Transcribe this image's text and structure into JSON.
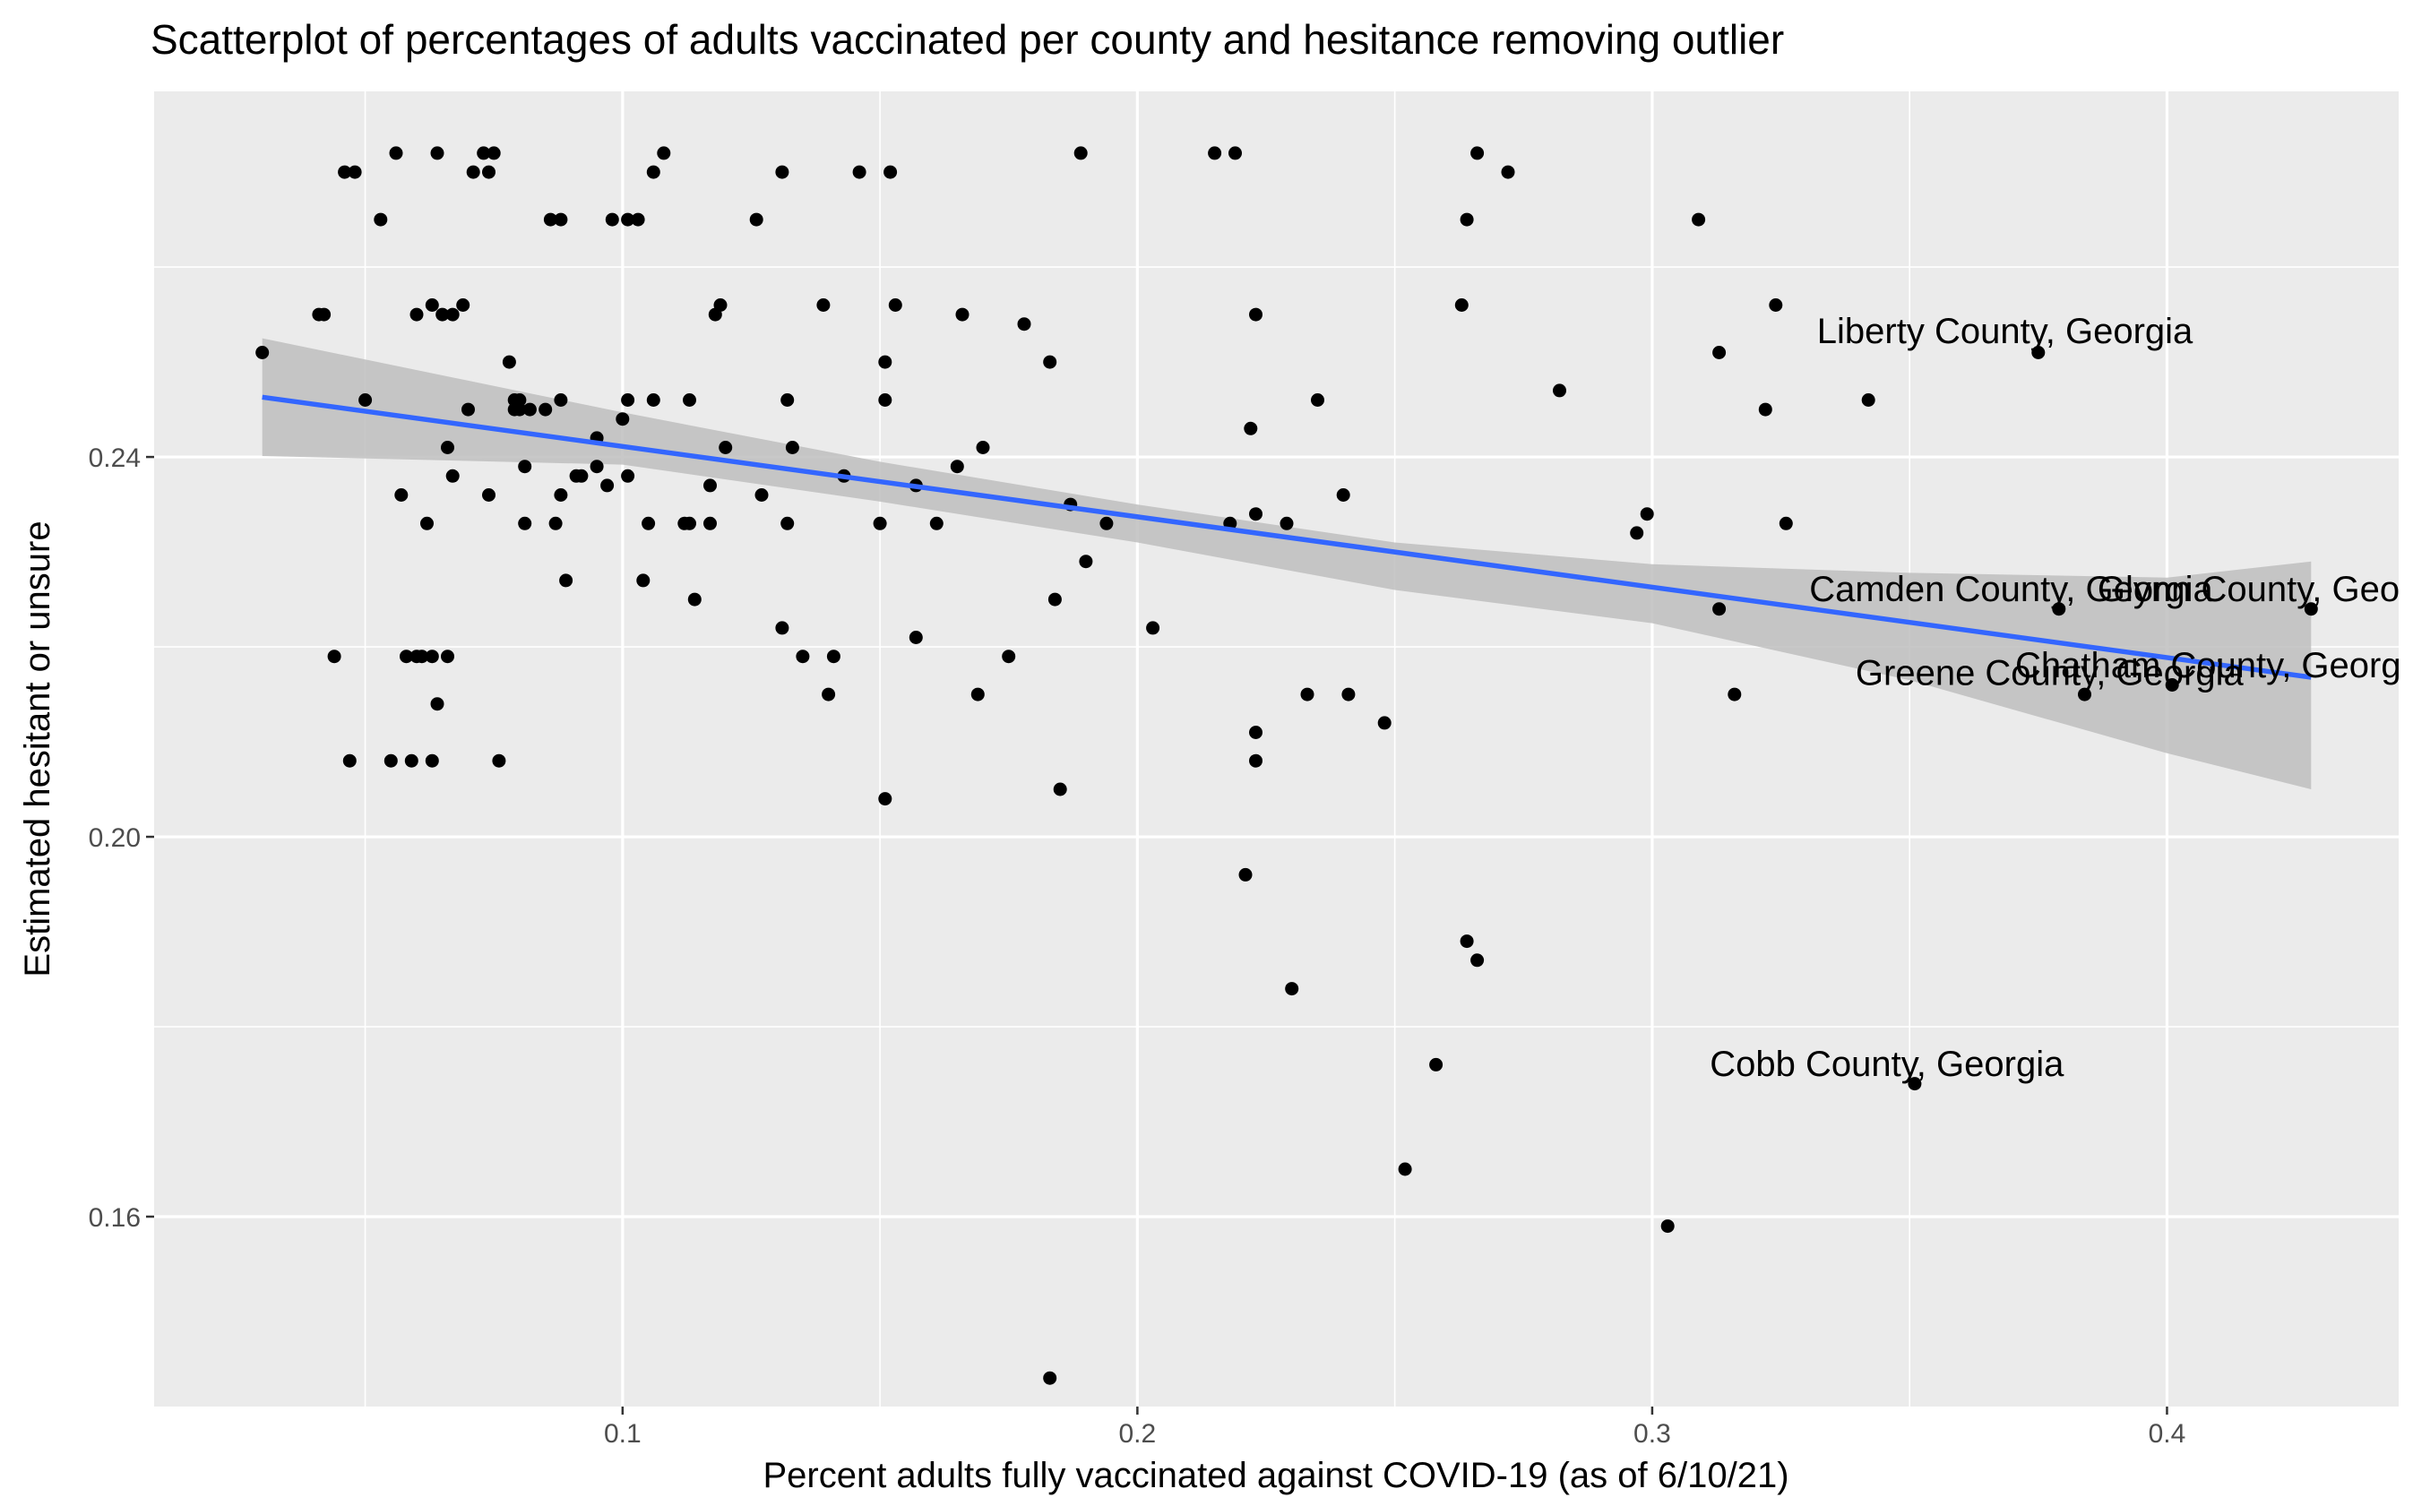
{
  "chart_data": {
    "type": "scatter",
    "title": "Scatterplot of percentages of adults vaccinated per county and hesitance removing outlier",
    "xlabel": "Percent adults fully vaccinated against COVID-19 (as of 6/10/21)",
    "ylabel": "Estimated hesitant or unsure",
    "xlim": [
      0.009,
      0.445
    ],
    "ylim": [
      0.14,
      0.2785
    ],
    "x_ticks": [
      0.1,
      0.2,
      0.3,
      0.4
    ],
    "x_tick_labels": [
      "0.1",
      "0.2",
      "0.3",
      "0.4"
    ],
    "y_ticks": [
      0.16,
      0.2,
      0.24
    ],
    "y_tick_labels": [
      "0.16",
      "0.20",
      "0.24"
    ],
    "grid": true,
    "background": "#ebebeb",
    "point_color": "#000000",
    "line_color": "#3366ff",
    "ribbon_color": "#bebebe",
    "points": [
      {
        "x": 0.03,
        "y": 0.251
      },
      {
        "x": 0.041,
        "y": 0.255
      },
      {
        "x": 0.042,
        "y": 0.255
      },
      {
        "x": 0.044,
        "y": 0.219
      },
      {
        "x": 0.046,
        "y": 0.27
      },
      {
        "x": 0.047,
        "y": 0.208
      },
      {
        "x": 0.048,
        "y": 0.27
      },
      {
        "x": 0.05,
        "y": 0.246
      },
      {
        "x": 0.053,
        "y": 0.265
      },
      {
        "x": 0.055,
        "y": 0.208
      },
      {
        "x": 0.056,
        "y": 0.272
      },
      {
        "x": 0.057,
        "y": 0.236
      },
      {
        "x": 0.058,
        "y": 0.219
      },
      {
        "x": 0.059,
        "y": 0.208
      },
      {
        "x": 0.06,
        "y": 0.219
      },
      {
        "x": 0.06,
        "y": 0.255
      },
      {
        "x": 0.061,
        "y": 0.219
      },
      {
        "x": 0.062,
        "y": 0.233
      },
      {
        "x": 0.063,
        "y": 0.219
      },
      {
        "x": 0.063,
        "y": 0.208
      },
      {
        "x": 0.063,
        "y": 0.256
      },
      {
        "x": 0.064,
        "y": 0.272
      },
      {
        "x": 0.064,
        "y": 0.214
      },
      {
        "x": 0.065,
        "y": 0.255
      },
      {
        "x": 0.066,
        "y": 0.241
      },
      {
        "x": 0.066,
        "y": 0.219
      },
      {
        "x": 0.067,
        "y": 0.255
      },
      {
        "x": 0.067,
        "y": 0.238
      },
      {
        "x": 0.069,
        "y": 0.256
      },
      {
        "x": 0.07,
        "y": 0.245
      },
      {
        "x": 0.071,
        "y": 0.27
      },
      {
        "x": 0.073,
        "y": 0.272
      },
      {
        "x": 0.074,
        "y": 0.236
      },
      {
        "x": 0.074,
        "y": 0.27
      },
      {
        "x": 0.075,
        "y": 0.272
      },
      {
        "x": 0.076,
        "y": 0.208
      },
      {
        "x": 0.078,
        "y": 0.25
      },
      {
        "x": 0.079,
        "y": 0.245
      },
      {
        "x": 0.079,
        "y": 0.246
      },
      {
        "x": 0.08,
        "y": 0.246
      },
      {
        "x": 0.08,
        "y": 0.245
      },
      {
        "x": 0.081,
        "y": 0.239
      },
      {
        "x": 0.081,
        "y": 0.233
      },
      {
        "x": 0.082,
        "y": 0.245
      },
      {
        "x": 0.085,
        "y": 0.245
      },
      {
        "x": 0.086,
        "y": 0.265
      },
      {
        "x": 0.087,
        "y": 0.233
      },
      {
        "x": 0.088,
        "y": 0.265
      },
      {
        "x": 0.088,
        "y": 0.246
      },
      {
        "x": 0.088,
        "y": 0.236
      },
      {
        "x": 0.089,
        "y": 0.227
      },
      {
        "x": 0.091,
        "y": 0.238
      },
      {
        "x": 0.092,
        "y": 0.238
      },
      {
        "x": 0.095,
        "y": 0.239
      },
      {
        "x": 0.095,
        "y": 0.242
      },
      {
        "x": 0.097,
        "y": 0.237
      },
      {
        "x": 0.098,
        "y": 0.265
      },
      {
        "x": 0.1,
        "y": 0.244
      },
      {
        "x": 0.101,
        "y": 0.238
      },
      {
        "x": 0.101,
        "y": 0.246
      },
      {
        "x": 0.101,
        "y": 0.265
      },
      {
        "x": 0.103,
        "y": 0.265
      },
      {
        "x": 0.104,
        "y": 0.227
      },
      {
        "x": 0.105,
        "y": 0.233
      },
      {
        "x": 0.106,
        "y": 0.246
      },
      {
        "x": 0.106,
        "y": 0.27
      },
      {
        "x": 0.108,
        "y": 0.272
      },
      {
        "x": 0.112,
        "y": 0.233
      },
      {
        "x": 0.113,
        "y": 0.246
      },
      {
        "x": 0.113,
        "y": 0.233
      },
      {
        "x": 0.114,
        "y": 0.225
      },
      {
        "x": 0.117,
        "y": 0.237
      },
      {
        "x": 0.117,
        "y": 0.233
      },
      {
        "x": 0.118,
        "y": 0.255
      },
      {
        "x": 0.119,
        "y": 0.256
      },
      {
        "x": 0.12,
        "y": 0.241
      },
      {
        "x": 0.126,
        "y": 0.265
      },
      {
        "x": 0.127,
        "y": 0.236
      },
      {
        "x": 0.131,
        "y": 0.222
      },
      {
        "x": 0.131,
        "y": 0.27
      },
      {
        "x": 0.132,
        "y": 0.233
      },
      {
        "x": 0.132,
        "y": 0.246
      },
      {
        "x": 0.133,
        "y": 0.241
      },
      {
        "x": 0.135,
        "y": 0.219
      },
      {
        "x": 0.139,
        "y": 0.256
      },
      {
        "x": 0.14,
        "y": 0.215
      },
      {
        "x": 0.141,
        "y": 0.219
      },
      {
        "x": 0.143,
        "y": 0.238
      },
      {
        "x": 0.146,
        "y": 0.27
      },
      {
        "x": 0.15,
        "y": 0.233
      },
      {
        "x": 0.151,
        "y": 0.25
      },
      {
        "x": 0.151,
        "y": 0.246
      },
      {
        "x": 0.151,
        "y": 0.204
      },
      {
        "x": 0.152,
        "y": 0.27
      },
      {
        "x": 0.153,
        "y": 0.256
      },
      {
        "x": 0.157,
        "y": 0.221
      },
      {
        "x": 0.157,
        "y": 0.237
      },
      {
        "x": 0.161,
        "y": 0.233
      },
      {
        "x": 0.165,
        "y": 0.239
      },
      {
        "x": 0.166,
        "y": 0.255
      },
      {
        "x": 0.169,
        "y": 0.215
      },
      {
        "x": 0.17,
        "y": 0.241
      },
      {
        "x": 0.175,
        "y": 0.219
      },
      {
        "x": 0.178,
        "y": 0.254
      },
      {
        "x": 0.183,
        "y": 0.143
      },
      {
        "x": 0.183,
        "y": 0.25
      },
      {
        "x": 0.184,
        "y": 0.225
      },
      {
        "x": 0.185,
        "y": 0.205
      },
      {
        "x": 0.187,
        "y": 0.235
      },
      {
        "x": 0.189,
        "y": 0.272
      },
      {
        "x": 0.19,
        "y": 0.229
      },
      {
        "x": 0.194,
        "y": 0.233
      },
      {
        "x": 0.203,
        "y": 0.222
      },
      {
        "x": 0.215,
        "y": 0.272
      },
      {
        "x": 0.218,
        "y": 0.233
      },
      {
        "x": 0.219,
        "y": 0.272
      },
      {
        "x": 0.221,
        "y": 0.196
      },
      {
        "x": 0.222,
        "y": 0.243
      },
      {
        "x": 0.223,
        "y": 0.234
      },
      {
        "x": 0.223,
        "y": 0.211
      },
      {
        "x": 0.223,
        "y": 0.208
      },
      {
        "x": 0.223,
        "y": 0.255
      },
      {
        "x": 0.229,
        "y": 0.233
      },
      {
        "x": 0.23,
        "y": 0.184
      },
      {
        "x": 0.233,
        "y": 0.215
      },
      {
        "x": 0.235,
        "y": 0.246
      },
      {
        "x": 0.24,
        "y": 0.236
      },
      {
        "x": 0.241,
        "y": 0.215
      },
      {
        "x": 0.248,
        "y": 0.212
      },
      {
        "x": 0.252,
        "y": 0.165
      },
      {
        "x": 0.258,
        "y": 0.176
      },
      {
        "x": 0.263,
        "y": 0.256
      },
      {
        "x": 0.264,
        "y": 0.265
      },
      {
        "x": 0.264,
        "y": 0.189
      },
      {
        "x": 0.266,
        "y": 0.187
      },
      {
        "x": 0.266,
        "y": 0.272
      },
      {
        "x": 0.272,
        "y": 0.27
      },
      {
        "x": 0.282,
        "y": 0.247
      },
      {
        "x": 0.297,
        "y": 0.232
      },
      {
        "x": 0.299,
        "y": 0.234
      },
      {
        "x": 0.303,
        "y": 0.159
      },
      {
        "x": 0.309,
        "y": 0.265
      },
      {
        "x": 0.313,
        "y": 0.251
      },
      {
        "x": 0.313,
        "y": 0.224
      },
      {
        "x": 0.316,
        "y": 0.215
      },
      {
        "x": 0.322,
        "y": 0.245
      },
      {
        "x": 0.324,
        "y": 0.256
      },
      {
        "x": 0.326,
        "y": 0.233
      },
      {
        "x": 0.342,
        "y": 0.246
      },
      {
        "x": 0.351,
        "y": 0.174
      },
      {
        "x": 0.375,
        "y": 0.251
      },
      {
        "x": 0.379,
        "y": 0.224
      },
      {
        "x": 0.384,
        "y": 0.215
      },
      {
        "x": 0.401,
        "y": 0.216
      },
      {
        "x": 0.428,
        "y": 0.224
      }
    ],
    "regression": {
      "x": [
        0.03,
        0.428
      ],
      "y": [
        0.2463,
        0.2168
      ]
    },
    "ribbon": {
      "x": [
        0.03,
        0.1,
        0.15,
        0.2,
        0.25,
        0.3,
        0.35,
        0.4,
        0.428
      ],
      "upper": [
        0.2525,
        0.2447,
        0.2395,
        0.235,
        0.231,
        0.2287,
        0.2278,
        0.2273,
        0.229
      ],
      "lower": [
        0.2401,
        0.2392,
        0.2353,
        0.231,
        0.226,
        0.2225,
        0.2165,
        0.2088,
        0.205
      ]
    },
    "annotations": [
      {
        "text": "Liberty County, Georgia",
        "x": 0.332,
        "y": 0.252
      },
      {
        "text": "Camden County, Georgia",
        "x": 0.3305,
        "y": 0.2248
      },
      {
        "text": "Glynn County, Georgia",
        "x": 0.3865,
        "y": 0.2248
      },
      {
        "text": "Chatham County, Georgia",
        "x": 0.3705,
        "y": 0.2168
      },
      {
        "text": "Greene County, Georgia",
        "x": 0.3395,
        "y": 0.216
      },
      {
        "text": "Cobb County, Georgia",
        "x": 0.3112,
        "y": 0.1748
      }
    ]
  }
}
